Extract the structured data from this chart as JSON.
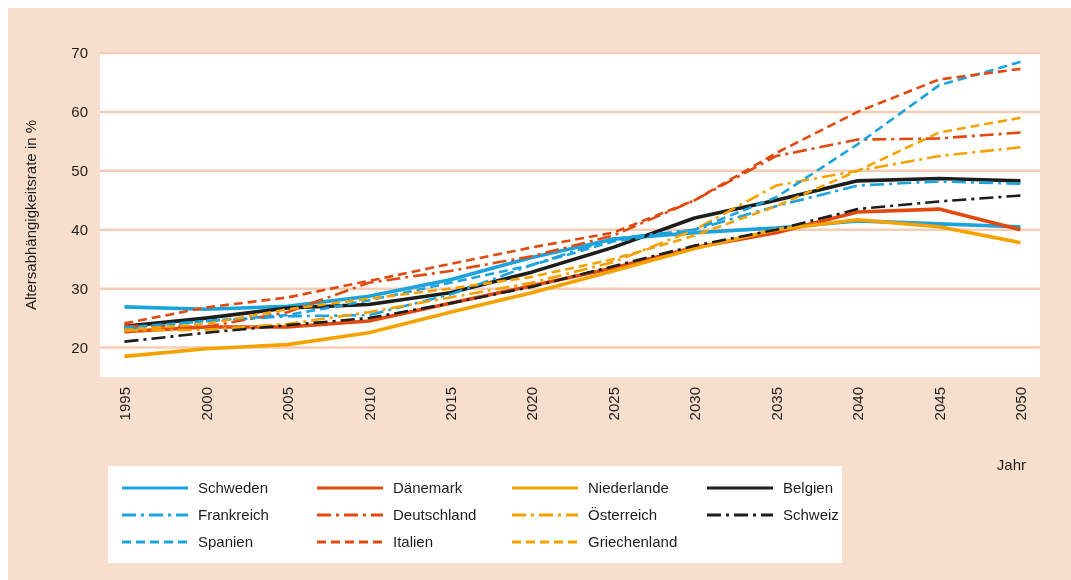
{
  "chart_data": {
    "type": "line",
    "xlabel": "Jahr",
    "ylabel": "Altersabhängigkeitsrate in %",
    "x": [
      1995,
      2000,
      2005,
      2010,
      2015,
      2020,
      2025,
      2030,
      2035,
      2040,
      2045,
      2050
    ],
    "xlim": [
      1993.5,
      2051.2
    ],
    "xticks": [
      1995,
      2000,
      2005,
      2010,
      2015,
      2020,
      2025,
      2030,
      2035,
      2040,
      2045,
      2050
    ],
    "ylim": [
      15,
      70
    ],
    "yticks": [
      20,
      30,
      40,
      50,
      60,
      70
    ],
    "grid": "y",
    "legend": "bottom",
    "series": [
      {
        "name": "Schweden",
        "color": "#1aa3dd",
        "line_style": "solid",
        "values": [
          26.9,
          26.5,
          27,
          28.7,
          31.5,
          35.3,
          38.4,
          39.5,
          40.3,
          41.5,
          41,
          40.5
        ]
      },
      {
        "name": "Frankreich",
        "color": "#1aa3dd",
        "line_style": "dashdot",
        "values": [
          23.2,
          24.5,
          25.3,
          25.5,
          29,
          34,
          38.5,
          40,
          44,
          47.5,
          48.2,
          47.8
        ]
      },
      {
        "name": "Spanien",
        "color": "#1aa3dd",
        "line_style": "dashed",
        "values": [
          23.4,
          24.5,
          25.5,
          28,
          31,
          34,
          38,
          40,
          45.5,
          54.5,
          64.5,
          68.5
        ]
      },
      {
        "name": "Dänemark",
        "color": "#e2490f",
        "line_style": "solid",
        "values": [
          22.7,
          23.5,
          23.5,
          24.5,
          27.5,
          30.5,
          33.5,
          37,
          39.5,
          43,
          43.5,
          40
        ]
      },
      {
        "name": "Deutschland",
        "color": "#e2490f",
        "line_style": "dashdot",
        "values": [
          23.7,
          23.5,
          26,
          31,
          33,
          35.5,
          39,
          45,
          52.5,
          55.3,
          55.5,
          56.5
        ]
      },
      {
        "name": "Italien",
        "color": "#e2490f",
        "line_style": "dashed",
        "values": [
          24.1,
          26.8,
          28.5,
          31.3,
          34.2,
          37,
          39.5,
          45,
          53,
          60,
          65.5,
          67.3
        ]
      },
      {
        "name": "Niederlande",
        "color": "#f5a200",
        "line_style": "solid",
        "values": [
          18.5,
          19.8,
          20.5,
          22.5,
          26,
          29.3,
          33,
          36.8,
          40,
          41.7,
          40.5,
          37.8
        ]
      },
      {
        "name": "Österreich",
        "color": "#f5a200",
        "line_style": "dashdot",
        "values": [
          22.9,
          23,
          24,
          26,
          28.5,
          31,
          34.5,
          40,
          47.5,
          50,
          52.5,
          54
        ]
      },
      {
        "name": "Griechenland",
        "color": "#f5a200",
        "line_style": "dashed",
        "values": [
          23,
          24,
          26.5,
          28.3,
          30,
          32,
          35,
          39,
          44,
          50,
          56.5,
          59
        ]
      },
      {
        "name": "Belgien",
        "color": "#1d1d1b",
        "line_style": "solid",
        "values": [
          23.6,
          25,
          26.7,
          27.3,
          29.3,
          32.8,
          37,
          42,
          45,
          48.3,
          48.7,
          48.3
        ]
      },
      {
        "name": "Schweiz",
        "color": "#1d1d1b",
        "line_style": "dashdot",
        "values": [
          21,
          22.5,
          23.8,
          25,
          27.5,
          30.3,
          33.8,
          37.3,
          40,
          43.5,
          44.8,
          45.8
        ]
      }
    ]
  }
}
